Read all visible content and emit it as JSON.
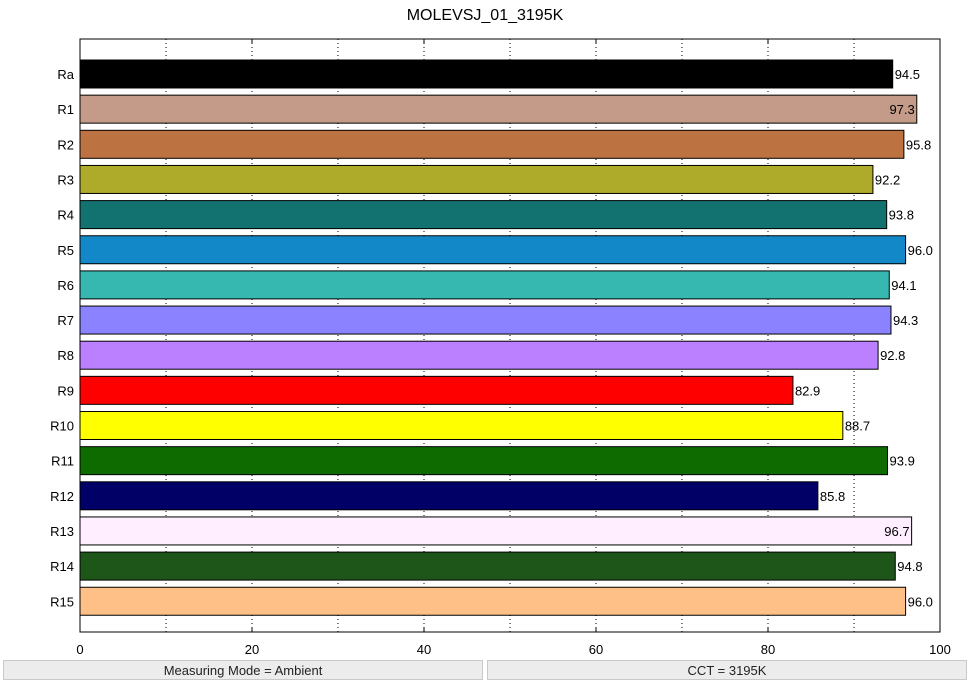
{
  "colors": {
    "background": "#ffffff",
    "axis": "#000000",
    "grid": "#000000",
    "status_bar": "#ececec"
  },
  "status_bar": {
    "left": "Measuring Mode = Ambient",
    "right": "CCT = 3195K"
  },
  "chart_data": {
    "type": "bar",
    "orientation": "horizontal",
    "title": "MOLEVSJ_01_3195K",
    "xlabel": "",
    "ylabel": "",
    "xlim": [
      0,
      100
    ],
    "x_ticks": [
      0,
      20,
      40,
      60,
      80,
      100
    ],
    "grid": "vertical dotted at 10-unit steps",
    "legend": "none",
    "categories": [
      "Ra",
      "R1",
      "R2",
      "R3",
      "R4",
      "R5",
      "R6",
      "R7",
      "R8",
      "R9",
      "R10",
      "R11",
      "R12",
      "R13",
      "R14",
      "R15"
    ],
    "values": [
      94.5,
      97.3,
      95.8,
      92.2,
      93.8,
      96.0,
      94.1,
      94.3,
      92.8,
      82.9,
      88.7,
      93.9,
      85.8,
      96.7,
      94.8,
      96.0
    ],
    "value_labels": [
      "94.5",
      "97.3",
      "95.8",
      "92.2",
      "93.8",
      "96.0",
      "94.1",
      "94.3",
      "92.8",
      "82.9",
      "88.7",
      "93.9",
      "85.8",
      "96.7",
      "94.8",
      "96.0"
    ],
    "bar_colors": [
      "#000000",
      "#c49a88",
      "#bd7242",
      "#aeab2a",
      "#117270",
      "#1388c8",
      "#36b8b0",
      "#8a82ff",
      "#bb80ff",
      "#ff0000",
      "#ffff00",
      "#0d6b00",
      "#000066",
      "#ffeeff",
      "#1e561a",
      "#ffc088"
    ]
  }
}
